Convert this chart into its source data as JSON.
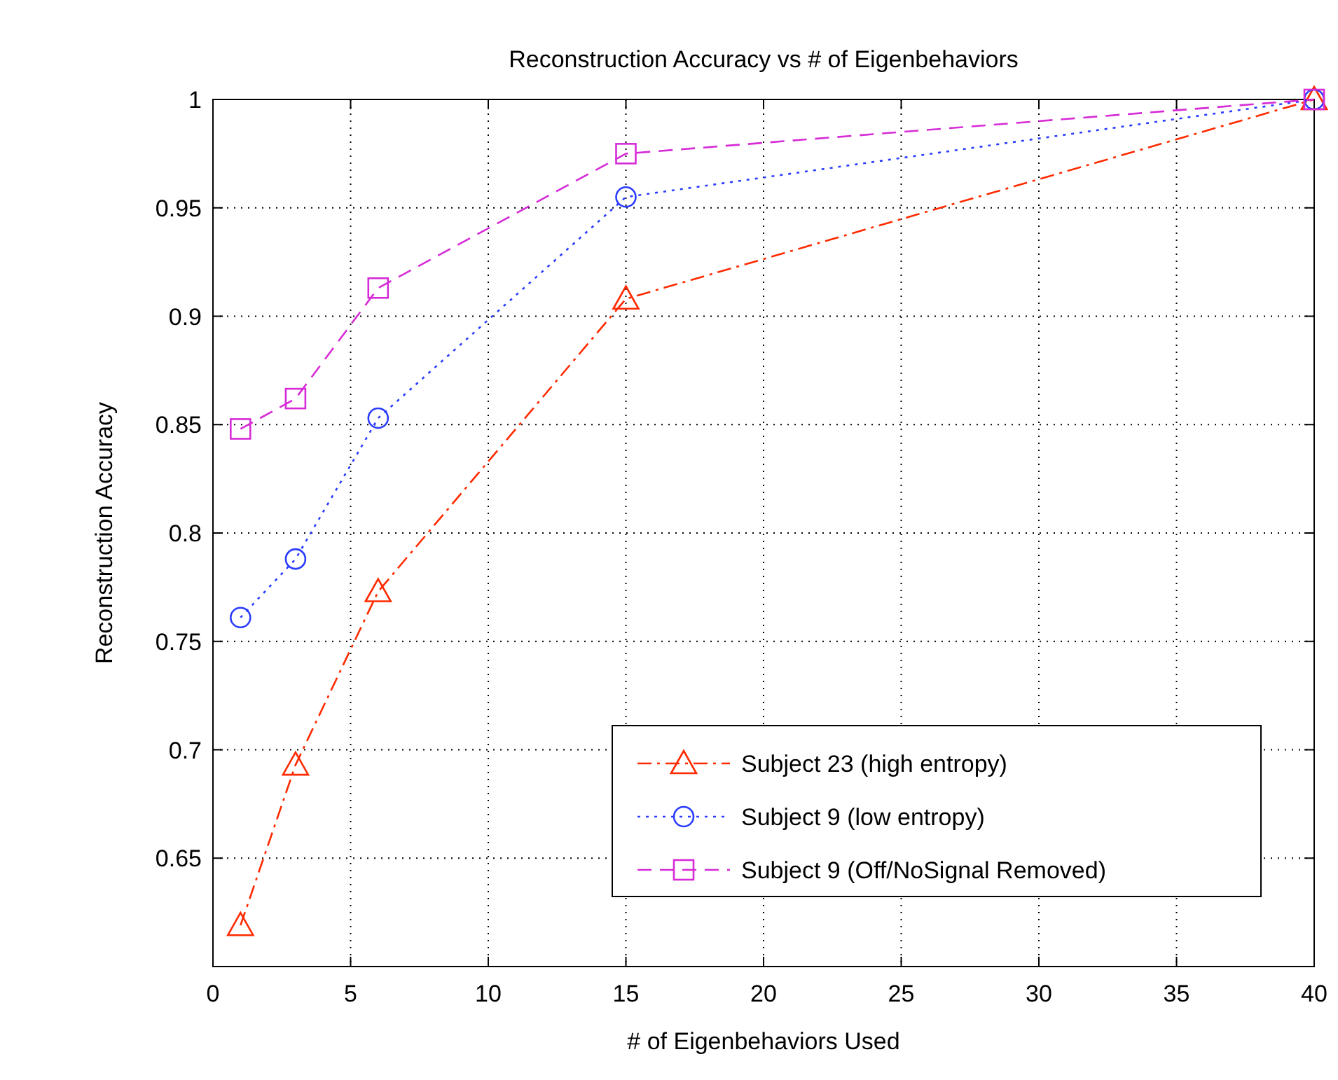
{
  "chart_data": {
    "type": "line",
    "title": "Reconstruction Accuracy vs # of Eigenbehaviors",
    "xlabel": "# of Eigenbehaviors Used",
    "ylabel": "Reconstruction Accuracy",
    "x": [
      1,
      3,
      6,
      15,
      40
    ],
    "series": [
      {
        "name": "Subject 23 (high entropy)",
        "color": "#ff2a00",
        "marker": "triangle",
        "line_style": "dashdot",
        "values": [
          0.619,
          0.693,
          0.773,
          0.908,
          1
        ]
      },
      {
        "name": "Subject 9 (low entropy)",
        "color": "#2a3cff",
        "marker": "circle",
        "line_style": "dotted",
        "values": [
          0.761,
          0.788,
          0.853,
          0.955,
          1
        ]
      },
      {
        "name": "Subject 9 (Off/NoSignal Removed)",
        "color": "#d62bd6",
        "marker": "square",
        "line_style": "dashed",
        "values": [
          0.848,
          0.862,
          0.913,
          0.975,
          1
        ]
      }
    ],
    "xlim": [
      0,
      40
    ],
    "xticks": [
      0,
      5,
      10,
      15,
      20,
      25,
      30,
      35,
      40
    ],
    "ylim": [
      0.6,
      1
    ],
    "yticks": [
      0.65,
      0.7,
      0.75,
      0.8,
      0.85,
      0.9,
      0.95,
      1
    ],
    "grid": true,
    "legend": "bottom right"
  }
}
